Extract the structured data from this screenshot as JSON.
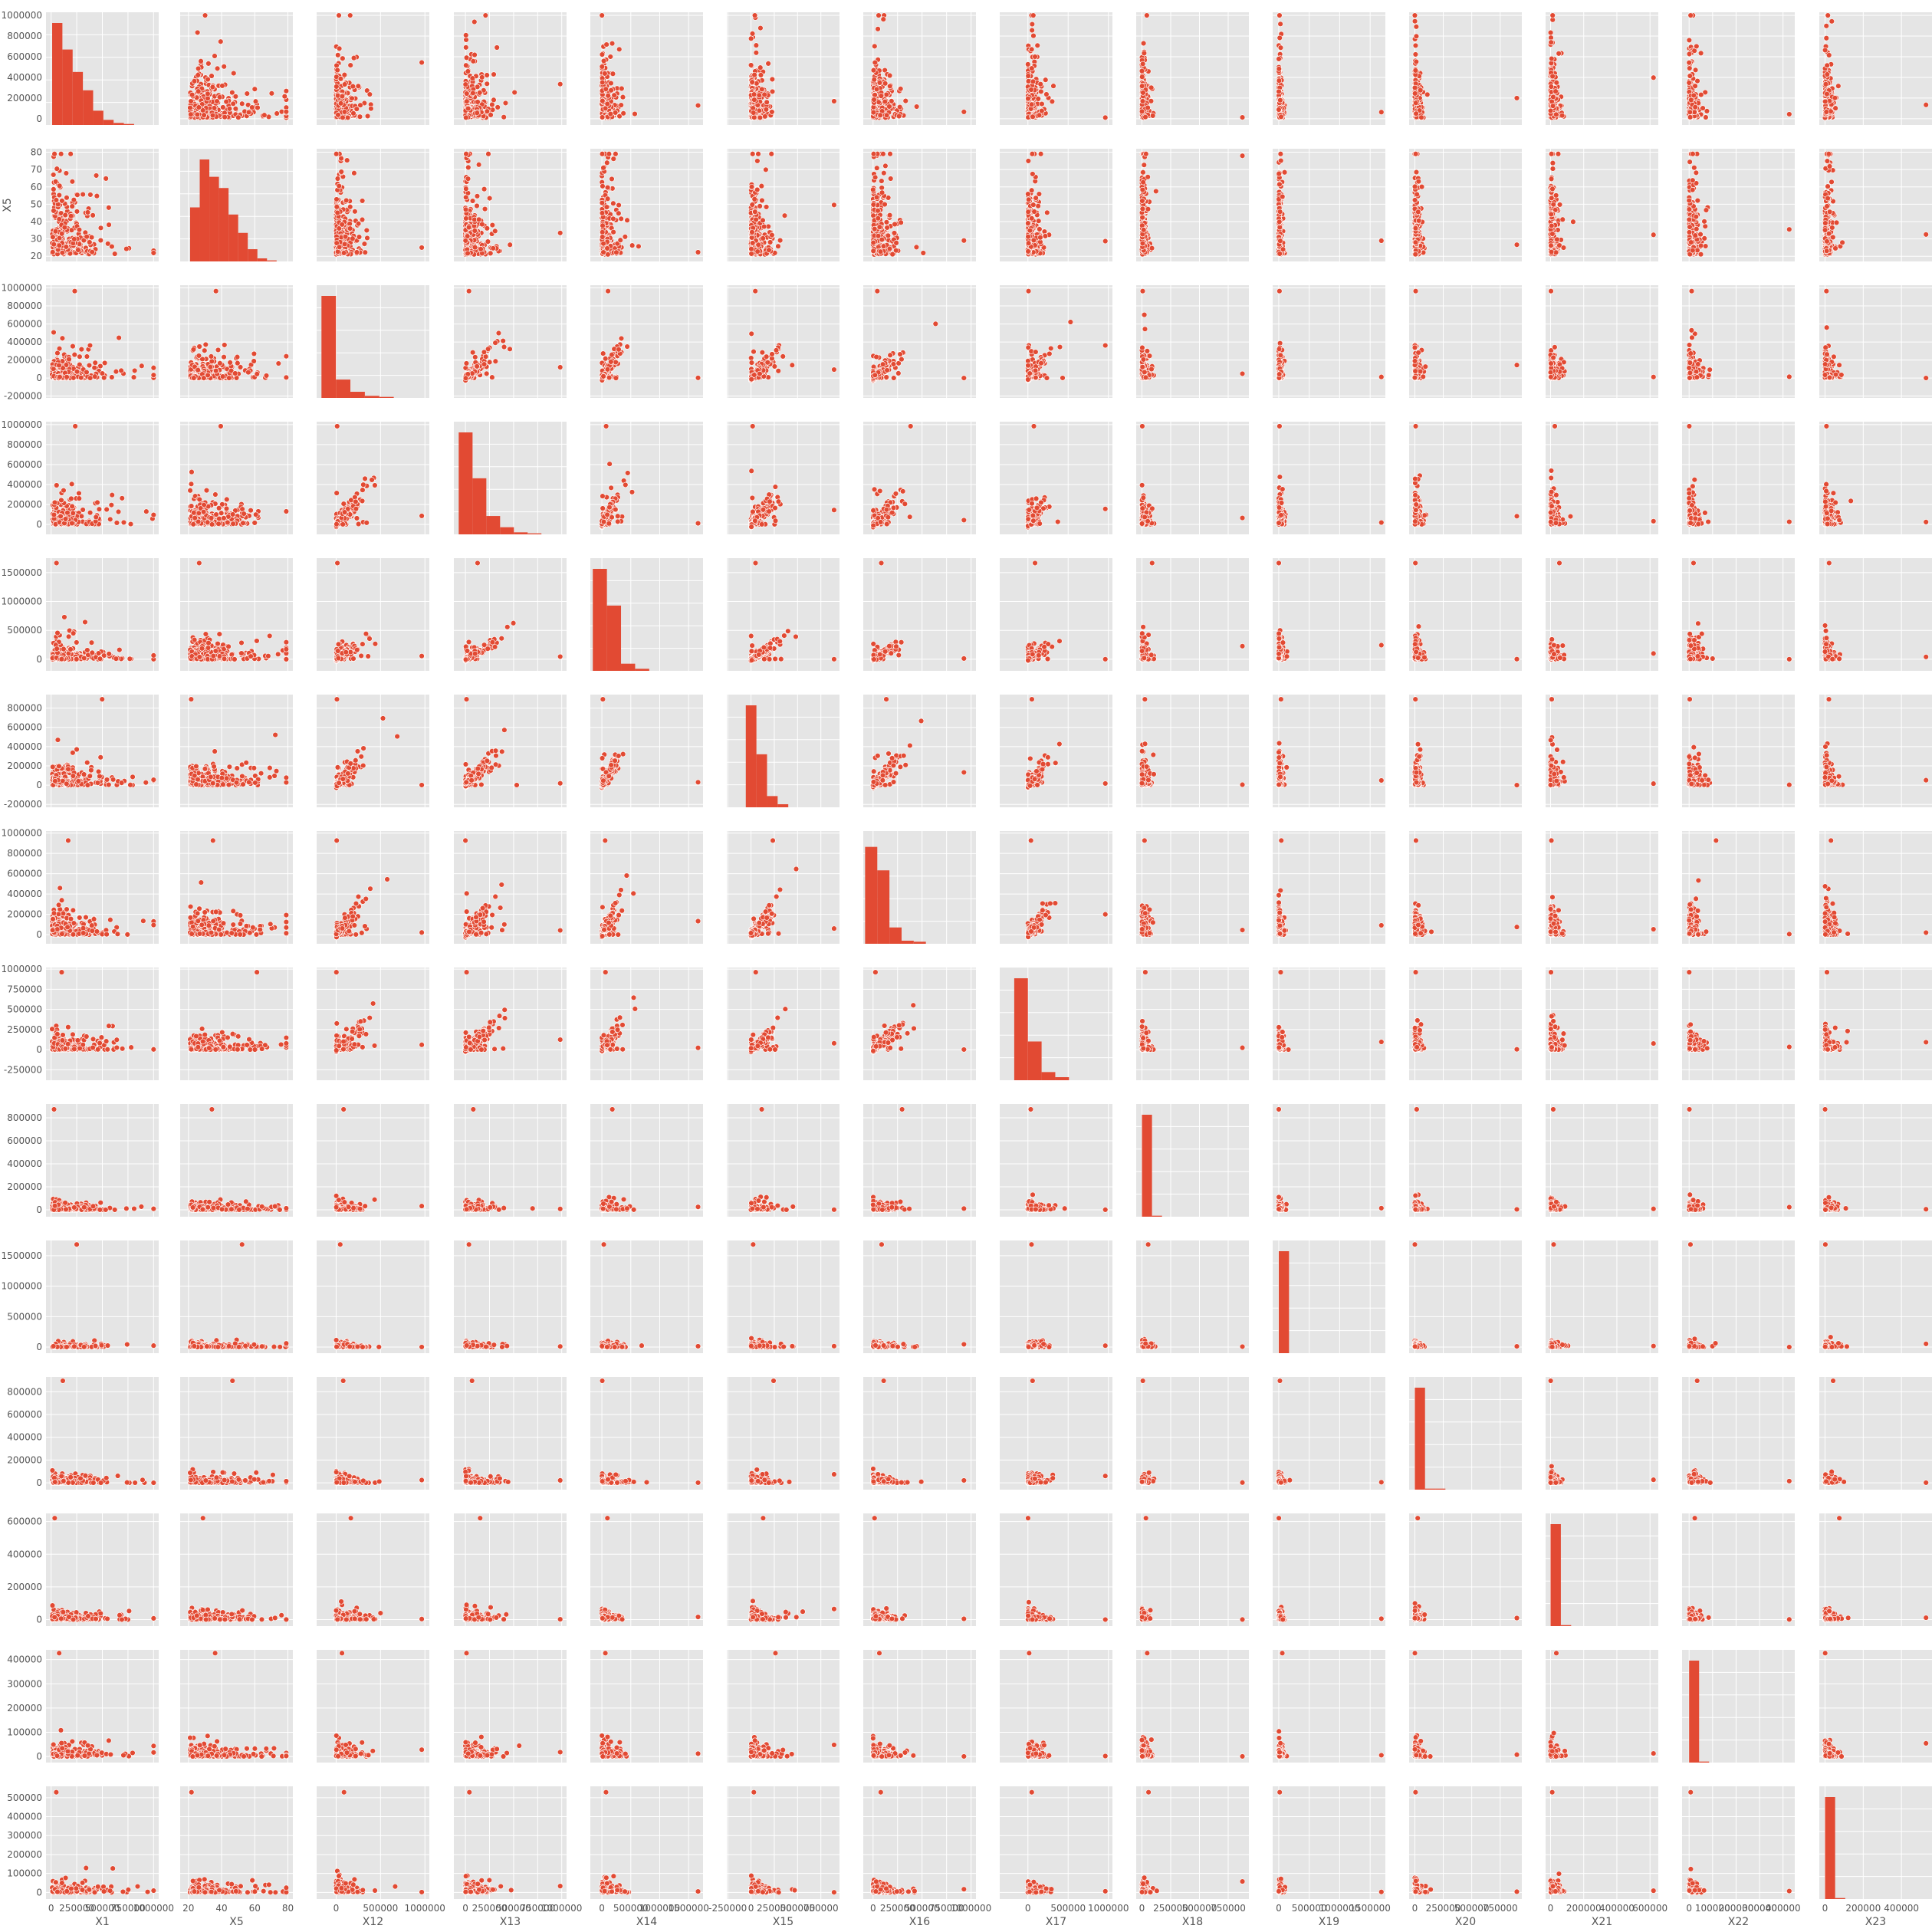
{
  "chart_data": {
    "type": "scatter",
    "kind": "pairplot-scatter-matrix",
    "style": "ggplot",
    "grid": true,
    "colors": {
      "marker": "#E24A33",
      "marker_edge": "#ffffff",
      "panel_bg": "#E5E5E5",
      "grid": "#ffffff",
      "text": "#555555"
    },
    "variables": [
      "X1",
      "X5",
      "X12",
      "X13",
      "X14",
      "X15",
      "X16",
      "X17",
      "X18",
      "X19",
      "X20",
      "X21",
      "X22",
      "X23"
    ],
    "x_axes": [
      {
        "var": "X1",
        "range": [
          -50000,
          1050000
        ],
        "ticks": [
          0,
          250000,
          500000,
          750000,
          1000000
        ],
        "tick_labels": [
          "0",
          "250000",
          "500000",
          "750000",
          "1000000"
        ]
      },
      {
        "var": "X5",
        "range": [
          15,
          83
        ],
        "ticks": [
          20,
          40,
          60,
          80
        ],
        "tick_labels": [
          "20",
          "40",
          "60",
          "80"
        ]
      },
      {
        "var": "X12",
        "range": [
          -220000,
          1050000
        ],
        "ticks": [
          0,
          500000,
          1000000
        ],
        "tick_labels": [
          "0",
          "500000",
          "1000000"
        ]
      },
      {
        "var": "X13",
        "range": [
          -120000,
          1050000
        ],
        "ticks": [
          0,
          250000,
          500000,
          750000,
          1000000
        ],
        "tick_labels": [
          "0",
          "250000",
          "500000",
          "750000",
          "1000000"
        ]
      },
      {
        "var": "X14",
        "range": [
          -200000,
          1750000
        ],
        "ticks": [
          0,
          500000,
          1000000,
          1500000
        ],
        "tick_labels": [
          "0",
          "500000",
          "1000000",
          "1500000"
        ]
      },
      {
        "var": "X15",
        "range": [
          -260000,
          950000
        ],
        "ticks": [
          -250000,
          0,
          250000,
          500000,
          750000
        ],
        "tick_labels": [
          "-250000",
          "0",
          "250000",
          "500000",
          "750000"
        ]
      },
      {
        "var": "X16",
        "range": [
          -100000,
          1050000
        ],
        "ticks": [
          0,
          250000,
          500000,
          750000,
          1000000
        ],
        "tick_labels": [
          "0",
          "250000",
          "500000",
          "750000",
          "1000000"
        ]
      },
      {
        "var": "X17",
        "range": [
          -350000,
          1050000
        ],
        "ticks": [
          0,
          500000,
          1000000
        ],
        "tick_labels": [
          "0",
          "500000",
          "1000000"
        ]
      },
      {
        "var": "X18",
        "range": [
          -50000,
          930000
        ],
        "ticks": [
          0,
          250000,
          500000,
          750000
        ],
        "tick_labels": [
          "0",
          "250000",
          "500000",
          "750000"
        ]
      },
      {
        "var": "X19",
        "range": [
          -100000,
          1750000
        ],
        "ticks": [
          0,
          500000,
          1000000,
          1500000
        ],
        "tick_labels": [
          "0",
          "500000",
          "1000000",
          "1500000"
        ]
      },
      {
        "var": "X20",
        "range": [
          -50000,
          940000
        ],
        "ticks": [
          0,
          250000,
          500000,
          750000
        ],
        "tick_labels": [
          "0",
          "250000",
          "500000",
          "750000"
        ]
      },
      {
        "var": "X21",
        "range": [
          -30000,
          650000
        ],
        "ticks": [
          0,
          200000,
          400000,
          600000
        ],
        "tick_labels": [
          "0",
          "200000",
          "400000",
          "600000"
        ]
      },
      {
        "var": "X22",
        "range": [
          -30000,
          450000
        ],
        "ticks": [
          0,
          100000,
          200000,
          300000,
          400000
        ],
        "tick_labels": [
          "0",
          "100000",
          "200000",
          "300000",
          "400000"
        ]
      },
      {
        "var": "X23",
        "range": [
          -30000,
          560000
        ],
        "ticks": [
          0,
          200000,
          400000
        ],
        "tick_labels": [
          "0",
          "200000",
          "400000"
        ]
      }
    ],
    "y_axes": [
      {
        "var": "X1",
        "range": [
          -60000,
          1030000
        ],
        "ticks": [
          0,
          200000,
          400000,
          600000,
          800000,
          1000000
        ],
        "tick_labels": [
          "0",
          "200000",
          "400000",
          "600000",
          "800000",
          "1000000"
        ]
      },
      {
        "var": "X5",
        "range": [
          17,
          82
        ],
        "ticks": [
          20,
          30,
          40,
          50,
          60,
          70,
          80
        ],
        "tick_labels": [
          "20",
          "30",
          "40",
          "50",
          "60",
          "70",
          "80"
        ]
      },
      {
        "var": "X12",
        "range": [
          -220000,
          1030000
        ],
        "ticks": [
          -200000,
          0,
          200000,
          400000,
          600000,
          800000,
          1000000
        ],
        "tick_labels": [
          "-200000",
          "0",
          "200000",
          "400000",
          "600000",
          "800000",
          "1000000"
        ]
      },
      {
        "var": "X13",
        "range": [
          -100000,
          1030000
        ],
        "ticks": [
          0,
          200000,
          400000,
          600000,
          800000,
          1000000
        ],
        "tick_labels": [
          "0",
          "200000",
          "400000",
          "600000",
          "800000",
          "1000000"
        ]
      },
      {
        "var": "X14",
        "range": [
          -200000,
          1750000
        ],
        "ticks": [
          0,
          500000,
          1000000,
          1500000
        ],
        "tick_labels": [
          "0",
          "500000",
          "1000000",
          "1500000"
        ]
      },
      {
        "var": "X15",
        "range": [
          -230000,
          940000
        ],
        "ticks": [
          -200000,
          0,
          200000,
          400000,
          600000,
          800000
        ],
        "tick_labels": [
          "-200000",
          "0",
          "200000",
          "400000",
          "600000",
          "800000"
        ]
      },
      {
        "var": "X16",
        "range": [
          -90000,
          1020000
        ],
        "ticks": [
          0,
          200000,
          400000,
          600000,
          800000,
          1000000
        ],
        "tick_labels": [
          "0",
          "200000",
          "400000",
          "600000",
          "800000",
          "1000000"
        ]
      },
      {
        "var": "X17",
        "range": [
          -380000,
          1020000
        ],
        "ticks": [
          -250000,
          0,
          250000,
          500000,
          750000,
          1000000
        ],
        "tick_labels": [
          "-250000",
          "0",
          "250000",
          "500000",
          "750000",
          "1000000"
        ]
      },
      {
        "var": "X18",
        "range": [
          -60000,
          920000
        ],
        "ticks": [
          0,
          200000,
          400000,
          600000,
          800000
        ],
        "tick_labels": [
          "0",
          "200000",
          "400000",
          "600000",
          "800000"
        ]
      },
      {
        "var": "X19",
        "range": [
          -100000,
          1750000
        ],
        "ticks": [
          0,
          500000,
          1000000,
          1500000
        ],
        "tick_labels": [
          "0",
          "500000",
          "1000000",
          "1500000"
        ]
      },
      {
        "var": "X20",
        "range": [
          -60000,
          930000
        ],
        "ticks": [
          0,
          200000,
          400000,
          600000,
          800000
        ],
        "tick_labels": [
          "0",
          "200000",
          "400000",
          "600000",
          "800000"
        ]
      },
      {
        "var": "X21",
        "range": [
          -40000,
          650000
        ],
        "ticks": [
          0,
          200000,
          400000,
          600000
        ],
        "tick_labels": [
          "0",
          "200000",
          "400000",
          "600000"
        ]
      },
      {
        "var": "X22",
        "range": [
          -25000,
          440000
        ],
        "ticks": [
          0,
          100000,
          200000,
          300000,
          400000
        ],
        "tick_labels": [
          "0",
          "100000",
          "200000",
          "300000",
          "400000"
        ]
      },
      {
        "var": "X23",
        "range": [
          -35000,
          560000
        ],
        "ticks": [
          0,
          100000,
          200000,
          300000,
          400000,
          500000
        ],
        "tick_labels": [
          "0",
          "100000",
          "200000",
          "300000",
          "400000",
          "500000"
        ]
      }
    ],
    "histograms": [
      {
        "var": "X1",
        "bin_edges": [
          10000,
          110000,
          210000,
          310000,
          410000,
          510000,
          610000,
          710000,
          810000,
          910000,
          1000000
        ],
        "relative_counts": [
          1.0,
          0.74,
          0.52,
          0.34,
          0.14,
          0.05,
          0.02,
          0.01,
          0.0,
          0.0
        ]
      },
      {
        "var": "X5",
        "bin_edges": [
          21,
          26.8,
          32.6,
          38.4,
          44.2,
          50,
          55.8,
          61.6,
          67.4,
          73.2,
          79
        ],
        "relative_counts": [
          0.53,
          1.0,
          0.83,
          0.72,
          0.46,
          0.28,
          0.12,
          0.03,
          0.01,
          0.0
        ]
      },
      {
        "var": "X12",
        "bin_edges": [
          -165580,
          -2621,
          160338,
          323297,
          486256,
          649215,
          812174,
          975133
        ],
        "relative_counts": [
          1.0,
          0.18,
          0.06,
          0.02,
          0.01,
          0.0,
          0.0
        ]
      },
      {
        "var": "X13",
        "bin_edges": [
          -69777,
          74000,
          217000,
          360000,
          503000,
          646000,
          789000,
          932000,
          983931
        ],
        "relative_counts": [
          1.0,
          0.55,
          0.18,
          0.07,
          0.02,
          0.01,
          0.0,
          0.0
        ]
      },
      {
        "var": "X14",
        "bin_edges": [
          -157264,
          87000,
          331000,
          575000,
          819000,
          1063000,
          1307000,
          1551000,
          1664089
        ],
        "relative_counts": [
          1.0,
          0.64,
          0.07,
          0.02,
          0.0,
          0.0,
          0.0,
          0.0
        ]
      },
      {
        "var": "X15",
        "bin_edges": [
          -170000,
          -56000,
          58000,
          172000,
          286000,
          400000,
          514000,
          628000,
          891586
        ],
        "relative_counts": [
          0.0,
          1.0,
          0.52,
          0.11,
          0.03,
          0.0,
          0.0,
          0.0
        ]
      },
      {
        "var": "X16",
        "bin_edges": [
          -81334,
          43000,
          167000,
          291000,
          415000,
          539000,
          663000,
          787000,
          927171
        ],
        "relative_counts": [
          0.95,
          0.72,
          0.16,
          0.03,
          0.02,
          0.0,
          0.0,
          0.0
        ]
      },
      {
        "var": "X17",
        "bin_edges": [
          -339603,
          -170000,
          0,
          170000,
          340000,
          510000,
          680000,
          850000,
          961664
        ],
        "relative_counts": [
          0.0,
          1.0,
          0.38,
          0.08,
          0.03,
          0.0,
          0.0,
          0.0
        ]
      },
      {
        "var": "X18",
        "bin_edges": [
          0,
          87300,
          174600,
          261900,
          349200,
          436500,
          523800,
          611100,
          698400,
          785700,
          873552
        ],
        "relative_counts": [
          1.0,
          0.01,
          0.0,
          0.0,
          0.0,
          0.0,
          0.0,
          0.0,
          0.0,
          0.0
        ]
      },
      {
        "var": "X19",
        "bin_edges": [
          0,
          168400,
          336800,
          505200,
          673600,
          842000,
          1010400,
          1178800,
          1347200,
          1515600,
          1684259
        ],
        "relative_counts": [
          1.0,
          0.0,
          0.0,
          0.0,
          0.0,
          0.0,
          0.0,
          0.0,
          0.0,
          0.0
        ]
      },
      {
        "var": "X20",
        "bin_edges": [
          0,
          89600,
          179200,
          268800,
          358400,
          448000,
          537600,
          627200,
          716800,
          806400,
          896040
        ],
        "relative_counts": [
          1.0,
          0.01,
          0.01,
          0.0,
          0.0,
          0.0,
          0.0,
          0.0,
          0.0,
          0.0
        ]
      },
      {
        "var": "X21",
        "bin_edges": [
          0,
          62100,
          124200,
          186300,
          248400,
          310500,
          372600,
          434700,
          496800,
          558900,
          621000
        ],
        "relative_counts": [
          1.0,
          0.01,
          0.0,
          0.0,
          0.0,
          0.0,
          0.0,
          0.0,
          0.0,
          0.0
        ]
      },
      {
        "var": "X22",
        "bin_edges": [
          0,
          42600,
          85200,
          127800,
          170400,
          213000,
          255600,
          298200,
          340800,
          383400,
          426529
        ],
        "relative_counts": [
          1.0,
          0.01,
          0.0,
          0.0,
          0.0,
          0.0,
          0.0,
          0.0,
          0.0,
          0.0
        ]
      },
      {
        "var": "X23",
        "bin_edges": [
          0,
          52900,
          105800,
          158700,
          211600,
          264500,
          317400,
          370300,
          423200,
          476100,
          528666
        ],
        "relative_counts": [
          1.0,
          0.01,
          0.0,
          0.0,
          0.0,
          0.0,
          0.0,
          0.0,
          0.0,
          0.0
        ]
      }
    ],
    "note": "off-diagonal panels are scatter plots of row variable (y) vs column variable (x); diagonal panels are histograms of the variable"
  }
}
